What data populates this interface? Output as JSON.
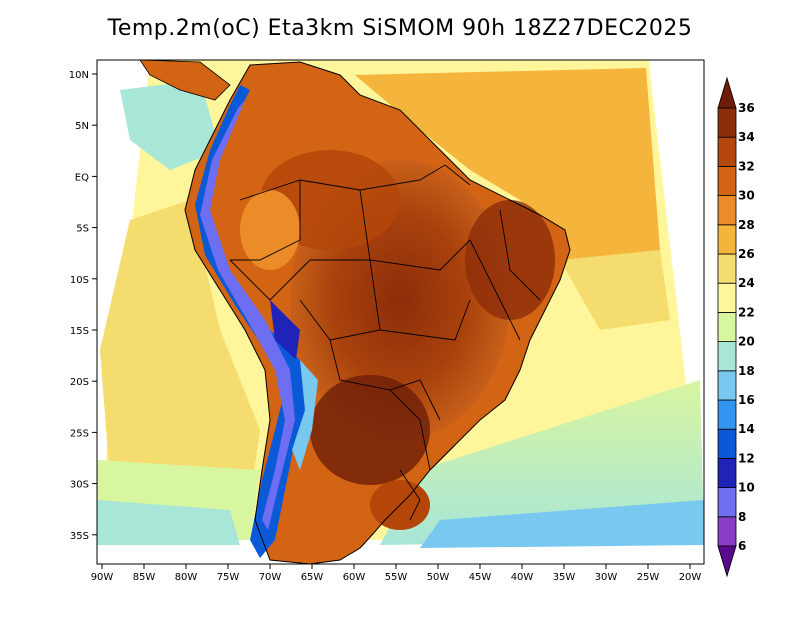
{
  "title": "Temp.2m(oC) Eta3km SiSMOM 90h 18Z27DEC2025",
  "lat_labels": [
    "10N",
    "5N",
    "EQ",
    "5S",
    "10S",
    "15S",
    "20S",
    "25S",
    "30S",
    "35S"
  ],
  "lon_labels": [
    "90W",
    "85W",
    "80W",
    "75W",
    "70W",
    "65W",
    "60W",
    "55W",
    "50W",
    "45W",
    "40W",
    "35W",
    "30W",
    "25W",
    "20W"
  ],
  "colorbar": {
    "labels": [
      "6",
      "8",
      "10",
      "12",
      "14",
      "16",
      "18",
      "20",
      "22",
      "24",
      "26",
      "28",
      "30",
      "32",
      "34",
      "36"
    ],
    "colors": [
      "#5a0a8c",
      "#8a3dc8",
      "#6e6ef2",
      "#1f23b8",
      "#0a5ad8",
      "#3296f0",
      "#78c8f0",
      "#a8e6d8",
      "#d8f5a0",
      "#fff59a",
      "#f5dc6e",
      "#f5b43c",
      "#eb8c28",
      "#d26414",
      "#b4460a",
      "#8c2d0a",
      "#6e1e08"
    ]
  },
  "legend_unit": "oC"
}
